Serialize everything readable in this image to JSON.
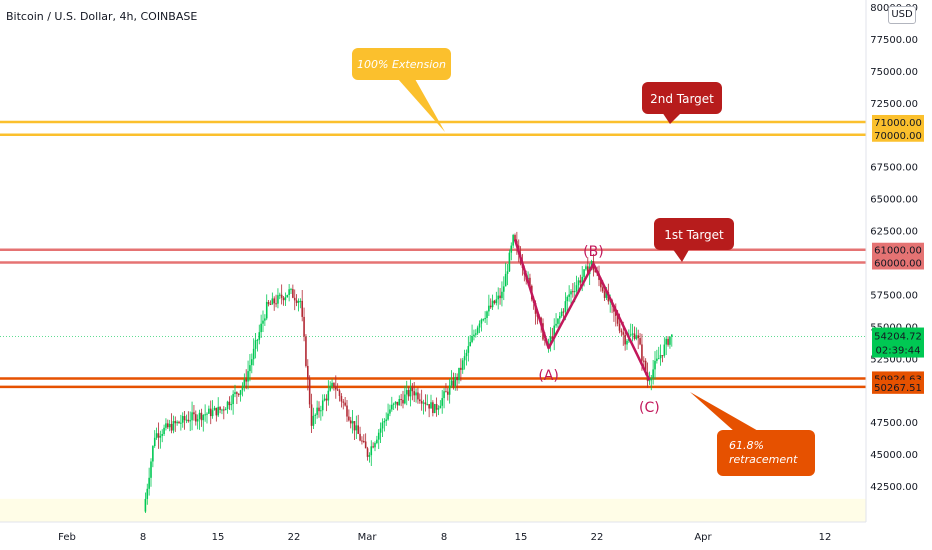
{
  "header": {
    "symbol_title": "Bitcoin / U.S. Dollar, 4h, COINBASE",
    "currency_button": "USD"
  },
  "colors": {
    "up": "#22ab94",
    "up_bright": "#00c853",
    "down": "#b22833",
    "target_red": "#b71c1c",
    "level_red_line": "#e57373",
    "extension_yellow": "#fbc02d",
    "level_orange": "#e65100",
    "wave_line": "#c2185b",
    "current_price_bg": "#00c853"
  },
  "chart_data": {
    "type": "candlestick",
    "title": "Bitcoin / U.S. Dollar, 4h, COINBASE",
    "y_axis": {
      "min": 40000,
      "max": 80000,
      "tick_labels": [
        "80000.00",
        "77500.00",
        "75000.00",
        "72500.00",
        "67500.00",
        "65000.00",
        "62500.00",
        "57500.00",
        "55000.00",
        "52500.00",
        "47500.00",
        "45000.00",
        "42500.00"
      ],
      "ticks": [
        80000,
        77500,
        75000,
        72500,
        67500,
        65000,
        62500,
        57500,
        55000,
        52500,
        47500,
        45000,
        42500
      ]
    },
    "x_axis": {
      "labels": [
        "Feb",
        "8",
        "15",
        "22",
        "Mar",
        "8",
        "15",
        "22",
        "Apr",
        "12"
      ]
    },
    "horizontal_levels": [
      {
        "value": 71000,
        "label": "71000.00",
        "color": "#fbc02d"
      },
      {
        "value": 70000,
        "label": "70000.00",
        "color": "#fbc02d"
      },
      {
        "value": 61000,
        "label": "61000.00",
        "color": "#e57373"
      },
      {
        "value": 60000,
        "label": "60000.00",
        "color": "#e57373"
      },
      {
        "value": 50924.63,
        "label": "50924.63",
        "color": "#e65100"
      },
      {
        "value": 50267.51,
        "label": "50267.51",
        "color": "#e65100"
      }
    ],
    "current_price": {
      "value": 54204.72,
      "label": "54204.72",
      "countdown": "02:39:44"
    },
    "wave_points": [
      {
        "label": "",
        "date": "Mar 13",
        "value": 61800
      },
      {
        "label": "(A)",
        "date": "Mar 16",
        "value": 53300
      },
      {
        "label": "(B)",
        "date": "Mar 20",
        "value": 59900
      },
      {
        "label": "(C)",
        "date": "Mar 25",
        "value": 50800
      }
    ],
    "annotations": [
      {
        "text": "100% Extension",
        "style": "callout-yellow"
      },
      {
        "text": "2nd Target",
        "style": "callout-red"
      },
      {
        "text": "1st Target",
        "style": "callout-red"
      },
      {
        "text": "61.8% retracement",
        "style": "callout-orange"
      }
    ],
    "wave_labels": [
      "(A)",
      "(B)",
      "(C)"
    ],
    "anchors": [
      {
        "date": "Feb 8",
        "value": 40500
      },
      {
        "date": "Feb 9",
        "value": 46500
      },
      {
        "date": "Feb 10",
        "value": 47000
      },
      {
        "date": "Feb 12",
        "value": 47800
      },
      {
        "date": "Feb 15",
        "value": 48500
      },
      {
        "date": "Feb 17",
        "value": 50500
      },
      {
        "date": "Feb 19",
        "value": 56500
      },
      {
        "date": "Feb 21",
        "value": 57700
      },
      {
        "date": "Feb 22",
        "value": 57000
      },
      {
        "date": "Feb 23",
        "value": 47500
      },
      {
        "date": "Feb 25",
        "value": 50500
      },
      {
        "date": "Feb 28",
        "value": 45000
      },
      {
        "date": "Mar 2",
        "value": 48500
      },
      {
        "date": "Mar 4",
        "value": 50000
      },
      {
        "date": "Mar 6",
        "value": 48500
      },
      {
        "date": "Mar 8",
        "value": 51000
      },
      {
        "date": "Mar 10",
        "value": 55500
      },
      {
        "date": "Mar 12",
        "value": 57500
      },
      {
        "date": "Mar 13",
        "value": 61800
      },
      {
        "date": "Mar 14",
        "value": 59500
      },
      {
        "date": "Mar 16",
        "value": 53300
      },
      {
        "date": "Mar 18",
        "value": 57500
      },
      {
        "date": "Mar 20",
        "value": 59900
      },
      {
        "date": "Mar 22",
        "value": 56000
      },
      {
        "date": "Mar 23",
        "value": 54000
      },
      {
        "date": "Mar 24",
        "value": 54500
      },
      {
        "date": "Mar 25",
        "value": 50800
      },
      {
        "date": "Mar 26",
        "value": 52500
      },
      {
        "date": "Mar 27",
        "value": 54200
      }
    ]
  }
}
